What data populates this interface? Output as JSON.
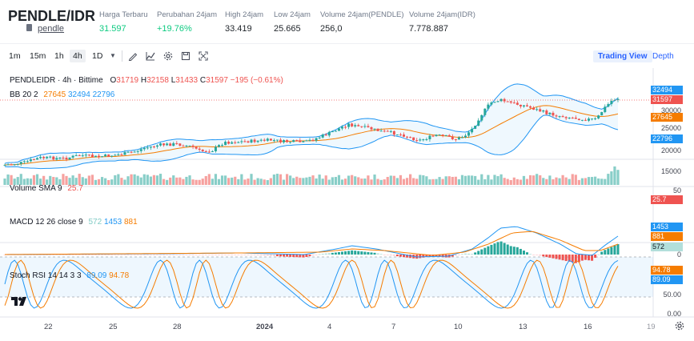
{
  "header": {
    "pair": "PENDLE/IDR",
    "sub_link": "pendle",
    "stats": [
      {
        "label": "Harga Terbaru",
        "value": "31.597",
        "color": "green"
      },
      {
        "label": "Perubahan 24jam",
        "value": "+19.76%",
        "color": "green"
      },
      {
        "label": "High 24jam",
        "value": "33.419",
        "color": "normal"
      },
      {
        "label": "Low 24jam",
        "value": "25.665",
        "color": "normal"
      },
      {
        "label": "Volume 24jam(PENDLE)",
        "value": "256,0",
        "color": "normal"
      },
      {
        "label": "Volume 24jam(IDR)",
        "value": "7.778.887",
        "color": "normal"
      }
    ]
  },
  "toolbar": {
    "timeframes": [
      "1m",
      "15m",
      "1h",
      "4h",
      "1D"
    ],
    "active_timeframe": "4h",
    "icons": [
      "dropdown-icon",
      "draw-icon",
      "indicator-icon",
      "settings-icon",
      "save-icon",
      "fullscreen-icon"
    ],
    "trading_view_label": "Trading View",
    "depth_label": "Depth"
  },
  "main_legend": {
    "symbol": "PENDLEIDR · 4h · Bittime",
    "o_label": "O",
    "o": "31719",
    "h_label": "H",
    "h": "32158",
    "l_label": "L",
    "l": "31433",
    "c_label": "C",
    "c": "31597",
    "change": "−195 (−0.61%)"
  },
  "bb_legend": {
    "label": "BB 20 2",
    "basis": "27645",
    "upper": "32494",
    "lower": "22796"
  },
  "volume_legend": {
    "label": "Volume SMA 9",
    "value": "25.7"
  },
  "macd_legend": {
    "label": "MACD 12 26 close 9",
    "hist": "572",
    "macd": "1453",
    "signal": "881"
  },
  "stoch_legend": {
    "label": "Stoch RSI 14 14 3 3",
    "k": "89.09",
    "d": "94.78"
  },
  "price_axis": {
    "ticks": [
      "30000",
      "25000",
      "20000",
      "15000"
    ],
    "tags": [
      {
        "text": "32494",
        "color": "#2196f3"
      },
      {
        "text": "31597",
        "color": "#ef5350"
      },
      {
        "text": "27645",
        "color": "#f57c00"
      },
      {
        "text": "22796",
        "color": "#2196f3"
      }
    ]
  },
  "volume_axis": {
    "ticks": [
      "50"
    ],
    "tag": {
      "text": "25.7",
      "color": "#ef5350"
    }
  },
  "macd_axis": {
    "tags": [
      {
        "text": "1453",
        "color": "#2196f3"
      },
      {
        "text": "881",
        "color": "#f57c00"
      },
      {
        "text": "572",
        "color": "#b2dfdb"
      }
    ],
    "ticks": [
      "0"
    ]
  },
  "stoch_axis": {
    "ticks": [
      "50.00",
      "0.00"
    ],
    "tags": [
      {
        "text": "94.78",
        "color": "#f57c00"
      },
      {
        "text": "89.09",
        "color": "#2196f3"
      }
    ]
  },
  "x_axis": {
    "labels": [
      "22",
      "25",
      "28",
      "2024",
      "4",
      "7",
      "10",
      "13",
      "16",
      "19"
    ]
  },
  "colors": {
    "up": "#26a69a",
    "down": "#ef5350",
    "bb": "#2196f3",
    "basis": "#f57c00",
    "accent": "#2962ff"
  }
}
